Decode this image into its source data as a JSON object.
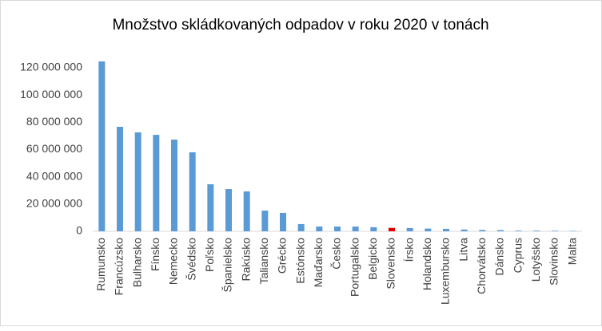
{
  "chart_data": {
    "type": "bar",
    "title": "Množstvo skládkovaných odpadov v roku 2020 v tonách",
    "categories": [
      "Rumunsko",
      "Francúzsko",
      "Bulharsko",
      "Fínsko",
      "Nemecko",
      "Švédsko",
      "Poľsko",
      "Španielsko",
      "Rakúsko",
      "Taliansko",
      "Grécko",
      "Estónsko",
      "Maďarsko",
      "Česko",
      "Portugalsko",
      "Belgicko",
      "Slovensko",
      "Írsko",
      "Holandsko",
      "Luxembursko",
      "Litva",
      "Chorvátsko",
      "Dánsko",
      "Cyprus",
      "Lotyšsko",
      "Slovinsko",
      "Malta"
    ],
    "values": [
      124700000,
      76700000,
      72600000,
      70800000,
      67300000,
      58000000,
      34500000,
      31000000,
      29300000,
      15200000,
      13500000,
      5300000,
      3500000,
      3500000,
      3500000,
      3000000,
      2500000,
      2400000,
      2000000,
      1800000,
      1300000,
      1000000,
      900000,
      500000,
      500000,
      400000,
      300000
    ],
    "colors": [
      "#5b9bd5",
      "#5b9bd5",
      "#5b9bd5",
      "#5b9bd5",
      "#5b9bd5",
      "#5b9bd5",
      "#5b9bd5",
      "#5b9bd5",
      "#5b9bd5",
      "#5b9bd5",
      "#5b9bd5",
      "#5b9bd5",
      "#5b9bd5",
      "#5b9bd5",
      "#5b9bd5",
      "#5b9bd5",
      "#e00000",
      "#5b9bd5",
      "#5b9bd5",
      "#5b9bd5",
      "#5b9bd5",
      "#5b9bd5",
      "#5b9bd5",
      "#5b9bd5",
      "#5b9bd5",
      "#5b9bd5",
      "#5b9bd5"
    ],
    "ylim": [
      0,
      120000000
    ],
    "yticks": [
      0,
      {
        "value": 20000000,
        "label": "20 000 000"
      },
      {
        "value": 40000000,
        "label": "40 000 000"
      },
      {
        "value": 60000000,
        "label": "60 000 000"
      },
      {
        "value": 80000000,
        "label": "80 000 000"
      },
      {
        "value": 100000000,
        "label": "100 000 000"
      },
      {
        "value": 120000000,
        "label": "120 000 000"
      }
    ],
    "grid": false
  }
}
